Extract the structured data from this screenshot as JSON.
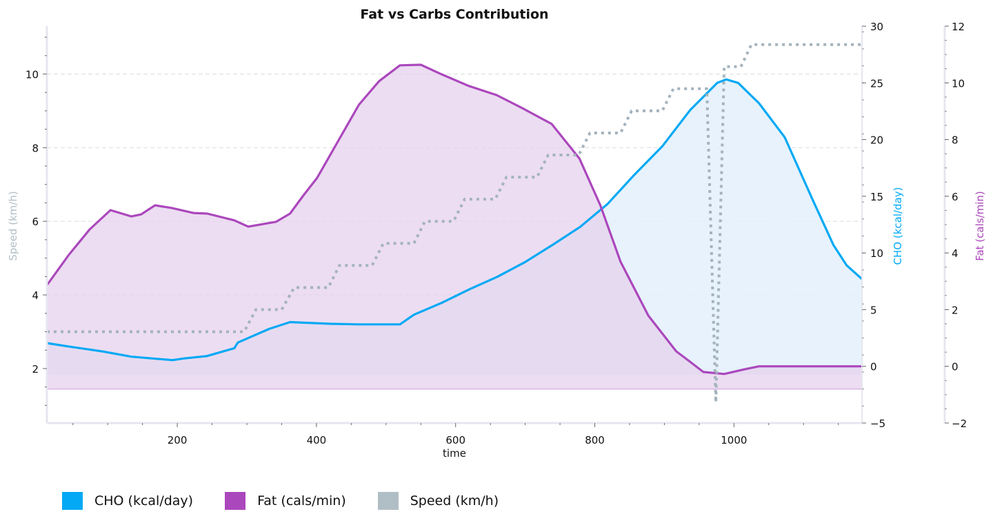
{
  "chart_data": {
    "type": "line",
    "title": "Fat vs Carbs Contribution",
    "xlabel": "time",
    "xlim": [
      12.6,
      1184
    ],
    "xticks": [
      200,
      400,
      600,
      800,
      1000
    ],
    "grid": true,
    "legend_position": "bottom-left",
    "axes": {
      "speed": {
        "label": "Speed (km/h)",
        "side": "left",
        "ylim": [
          0.52,
          11.3
        ],
        "ticks": [
          2,
          4,
          6,
          8,
          10
        ],
        "label_color": "#b0bec5"
      },
      "cho": {
        "label": "CHO (kcal/day)",
        "side": "right",
        "ylim": [
          -5,
          30
        ],
        "ticks": [
          -5,
          0,
          5,
          10,
          15,
          20,
          25,
          30
        ],
        "label_color": "#03a9f4"
      },
      "fat": {
        "label": "Fat (cals/min)",
        "side": "right-outer",
        "ylim": [
          -2,
          12
        ],
        "ticks": [
          -2,
          0,
          2,
          4,
          6,
          8,
          10,
          12
        ],
        "label_color": "#ab47bc"
      }
    },
    "series": [
      {
        "name": "CHO (kcal/day)",
        "axis": "cho",
        "color": "#03a9f4",
        "fill_color": "#e3f0fb",
        "fill_baseline": -0.75,
        "style": "solid",
        "x": [
          12.6,
          44,
          94,
          134,
          193,
          210,
          242,
          282,
          287,
          332,
          362,
          421,
          461,
          520,
          540,
          580,
          620,
          660,
          700,
          739,
          779,
          818,
          857,
          897,
          937,
          976,
          989,
          1006,
          1036,
          1073,
          1113,
          1143,
          1162,
          1184
        ],
        "values": [
          2.05,
          1.75,
          1.3,
          0.85,
          0.55,
          0.7,
          0.9,
          1.6,
          2.1,
          3.3,
          3.9,
          3.75,
          3.7,
          3.7,
          4.55,
          5.6,
          6.8,
          7.9,
          9.2,
          10.7,
          12.3,
          14.3,
          16.9,
          19.4,
          22.6,
          25.0,
          25.3,
          25.0,
          23.2,
          20.2,
          14.7,
          10.7,
          8.9,
          7.7
        ]
      },
      {
        "name": "Fat (cals/min)",
        "axis": "fat",
        "color": "#ab47bc",
        "fill_color": "#e6d2ed",
        "fill_baseline": -0.8,
        "style": "solid",
        "x": [
          12.6,
          44,
          74,
          104,
          134,
          148,
          168,
          193,
          223,
          243,
          282,
          302,
          342,
          362,
          381,
          401,
          431,
          461,
          490,
          520,
          550,
          580,
          619,
          659,
          698,
          738,
          778,
          808,
          837,
          877,
          917,
          937,
          956,
          986,
          1016,
          1036,
          1184
        ],
        "values": [
          2.86,
          3.93,
          4.83,
          5.51,
          5.29,
          5.36,
          5.68,
          5.58,
          5.41,
          5.39,
          5.15,
          4.93,
          5.1,
          5.39,
          6.02,
          6.65,
          7.94,
          9.23,
          10.06,
          10.62,
          10.64,
          10.3,
          9.89,
          9.57,
          9.08,
          8.55,
          7.33,
          5.68,
          3.69,
          1.79,
          0.53,
          0.16,
          -0.2,
          -0.27,
          -0.1,
          0,
          0
        ]
      },
      {
        "name": "Speed (km/h)",
        "axis": "speed",
        "color": "#b0bec5",
        "line_color": "#a4b3bd",
        "style": "dotted",
        "x": [
          12.6,
          296,
          313,
          350,
          368,
          417,
          433,
          480,
          496,
          540,
          556,
          597,
          613,
          657,
          673,
          717,
          733,
          777,
          793,
          837,
          853,
          897,
          913,
          950,
          961,
          974,
          986,
          1010,
          1025,
          1184
        ],
        "values": [
          3.0,
          3.0,
          3.6,
          3.6,
          4.2,
          4.2,
          4.8,
          4.8,
          5.4,
          5.4,
          6.0,
          6.0,
          6.6,
          6.6,
          7.2,
          7.2,
          7.8,
          7.8,
          8.4,
          8.4,
          9.0,
          9.0,
          9.6,
          9.6,
          9.6,
          1.08,
          10.2,
          10.2,
          10.8,
          10.8
        ]
      }
    ]
  },
  "legend": [
    {
      "label": "CHO (kcal/day)",
      "color": "#03a9f4"
    },
    {
      "label": "Fat (cals/min)",
      "color": "#ab47bc"
    },
    {
      "label": "Speed (km/h)",
      "color": "#b0bec5"
    }
  ]
}
